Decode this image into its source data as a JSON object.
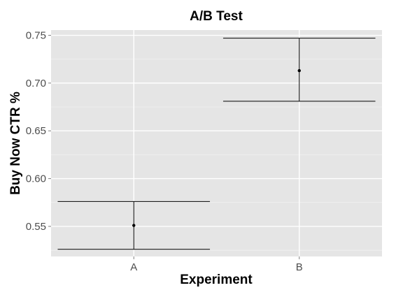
{
  "chart_data": {
    "type": "errorbar",
    "title": "A/B Test",
    "xlabel": "Experiment",
    "ylabel": "Buy Now CTR %",
    "categories": [
      "A",
      "B"
    ],
    "series": [
      {
        "values": [
          0.551,
          0.713
        ],
        "lower": [
          0.526,
          0.681
        ],
        "upper": [
          0.576,
          0.747
        ]
      }
    ],
    "ylim": [
      0.5185,
      0.7555
    ],
    "yticks": [
      0.55,
      0.6,
      0.65,
      0.7,
      0.75
    ],
    "ytick_labels": [
      "0.55",
      "0.60",
      "0.65",
      "0.70",
      "0.75"
    ],
    "grid": true,
    "legend": "none",
    "colors": {
      "panel": "#e5e5e5",
      "grid_major": "#ffffff",
      "grid_minor": "#f2f2f2",
      "marks": "#000000"
    }
  }
}
